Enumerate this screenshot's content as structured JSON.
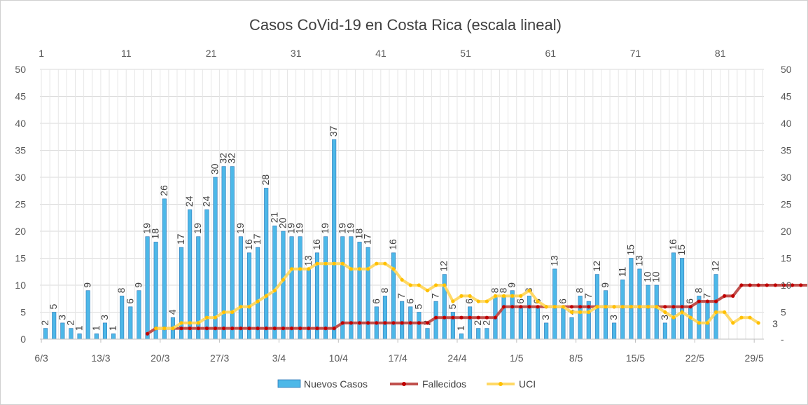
{
  "chart_data": {
    "type": "bar+line",
    "title": "Casos CoVid-19 en Costa Rica (escala lineal)",
    "ylim": [
      0,
      50
    ],
    "yticks": [
      "0",
      "5",
      "10",
      "15",
      "20",
      "25",
      "30",
      "35",
      "40",
      "45",
      "50"
    ],
    "y2ticks": [
      "-",
      "5",
      "10",
      "15",
      "20",
      "25",
      "30",
      "35",
      "40",
      "45",
      "50"
    ],
    "top_axis_ticks": [
      "1",
      "11",
      "21",
      "31",
      "41",
      "51",
      "61",
      "71",
      "81"
    ],
    "date_ticks": [
      "6/3",
      "13/3",
      "20/3",
      "27/3",
      "3/4",
      "10/4",
      "17/4",
      "24/4",
      "1/5",
      "8/5",
      "15/5",
      "22/5",
      "29/5"
    ],
    "series": [
      {
        "name": "Nuevos Casos",
        "type": "bar",
        "color": "#4db8e8",
        "values": [
          2,
          5,
          3,
          2,
          1,
          9,
          1,
          3,
          1,
          8,
          6,
          9,
          19,
          18,
          26,
          4,
          17,
          24,
          19,
          24,
          30,
          32,
          32,
          19,
          16,
          17,
          28,
          21,
          20,
          19,
          19,
          13,
          16,
          19,
          37,
          19,
          19,
          18,
          17,
          6,
          8,
          16,
          7,
          6,
          5,
          2,
          7,
          12,
          5,
          1,
          6,
          2,
          2,
          8,
          8,
          9,
          6,
          8,
          6,
          3,
          13,
          6,
          4,
          8,
          7,
          12,
          9,
          3,
          11,
          15,
          13,
          10,
          10,
          3,
          16,
          15,
          6,
          8,
          7,
          12
        ],
        "data_labels": [
          "2",
          "5",
          "3",
          "2",
          "1",
          "9",
          "1",
          "3",
          "1",
          "8",
          "6",
          "9",
          "19",
          "18",
          "26",
          "4",
          "17",
          "24",
          "19",
          "24",
          "30",
          "32",
          "32",
          "19",
          "16",
          "17",
          "28",
          "21",
          "20",
          "19",
          "19",
          "13",
          "16",
          "19",
          "37",
          "19",
          "19",
          "18",
          "17",
          "6",
          "8",
          "16",
          "7",
          "6",
          "5",
          "2",
          "7",
          "12",
          "5",
          "1",
          "6",
          "2",
          "2",
          "8",
          "8",
          "9",
          "6",
          "8",
          "6",
          "3",
          "13",
          "6",
          "4",
          "8",
          "7",
          "12",
          "9",
          "3",
          "11",
          "15",
          "13",
          "10",
          "10",
          "3",
          "16",
          "15",
          "6",
          "8",
          "7",
          "12"
        ]
      },
      {
        "name": "Fallecidos",
        "type": "line",
        "color": "#c0504d",
        "marker_color": "#c00000",
        "start_index": 12,
        "values": [
          1,
          2,
          2,
          2,
          2,
          2,
          2,
          2,
          2,
          2,
          2,
          2,
          2,
          2,
          2,
          2,
          2,
          2,
          2,
          2,
          2,
          2,
          2,
          3,
          3,
          3,
          3,
          3,
          3,
          3,
          3,
          3,
          3,
          3,
          4,
          4,
          4,
          4,
          4,
          4,
          4,
          4,
          6,
          6,
          6,
          6,
          6,
          6,
          6,
          6,
          6,
          6,
          6,
          6,
          6,
          6,
          6,
          6,
          6,
          6,
          6,
          6,
          6,
          6,
          6,
          7,
          7,
          7,
          8,
          8,
          10,
          10,
          10,
          10,
          10,
          10,
          10,
          10,
          10,
          10
        ],
        "end_label": "10"
      },
      {
        "name": "UCI",
        "type": "line",
        "color": "#ffd966",
        "marker_color": "#ffc000",
        "start_index": 13,
        "values": [
          2,
          2,
          2,
          3,
          3,
          3,
          4,
          4,
          5,
          5,
          6,
          6,
          7,
          8,
          9,
          11,
          13,
          13,
          13,
          14,
          14,
          14,
          14,
          13,
          13,
          13,
          14,
          14,
          13,
          11,
          10,
          10,
          9,
          10,
          10,
          7,
          8,
          8,
          7,
          7,
          8,
          8,
          8,
          8,
          9,
          7,
          6,
          6,
          6,
          5,
          5,
          5,
          6,
          6,
          6,
          6,
          6,
          6,
          6,
          6,
          5,
          4,
          5,
          4,
          3,
          3,
          5,
          5,
          3,
          4,
          4,
          3
        ],
        "end_label": "3"
      }
    ],
    "legend": {
      "position": "bottom",
      "items": [
        "Nuevos Casos",
        "Fallecidos",
        "UCI"
      ]
    }
  }
}
